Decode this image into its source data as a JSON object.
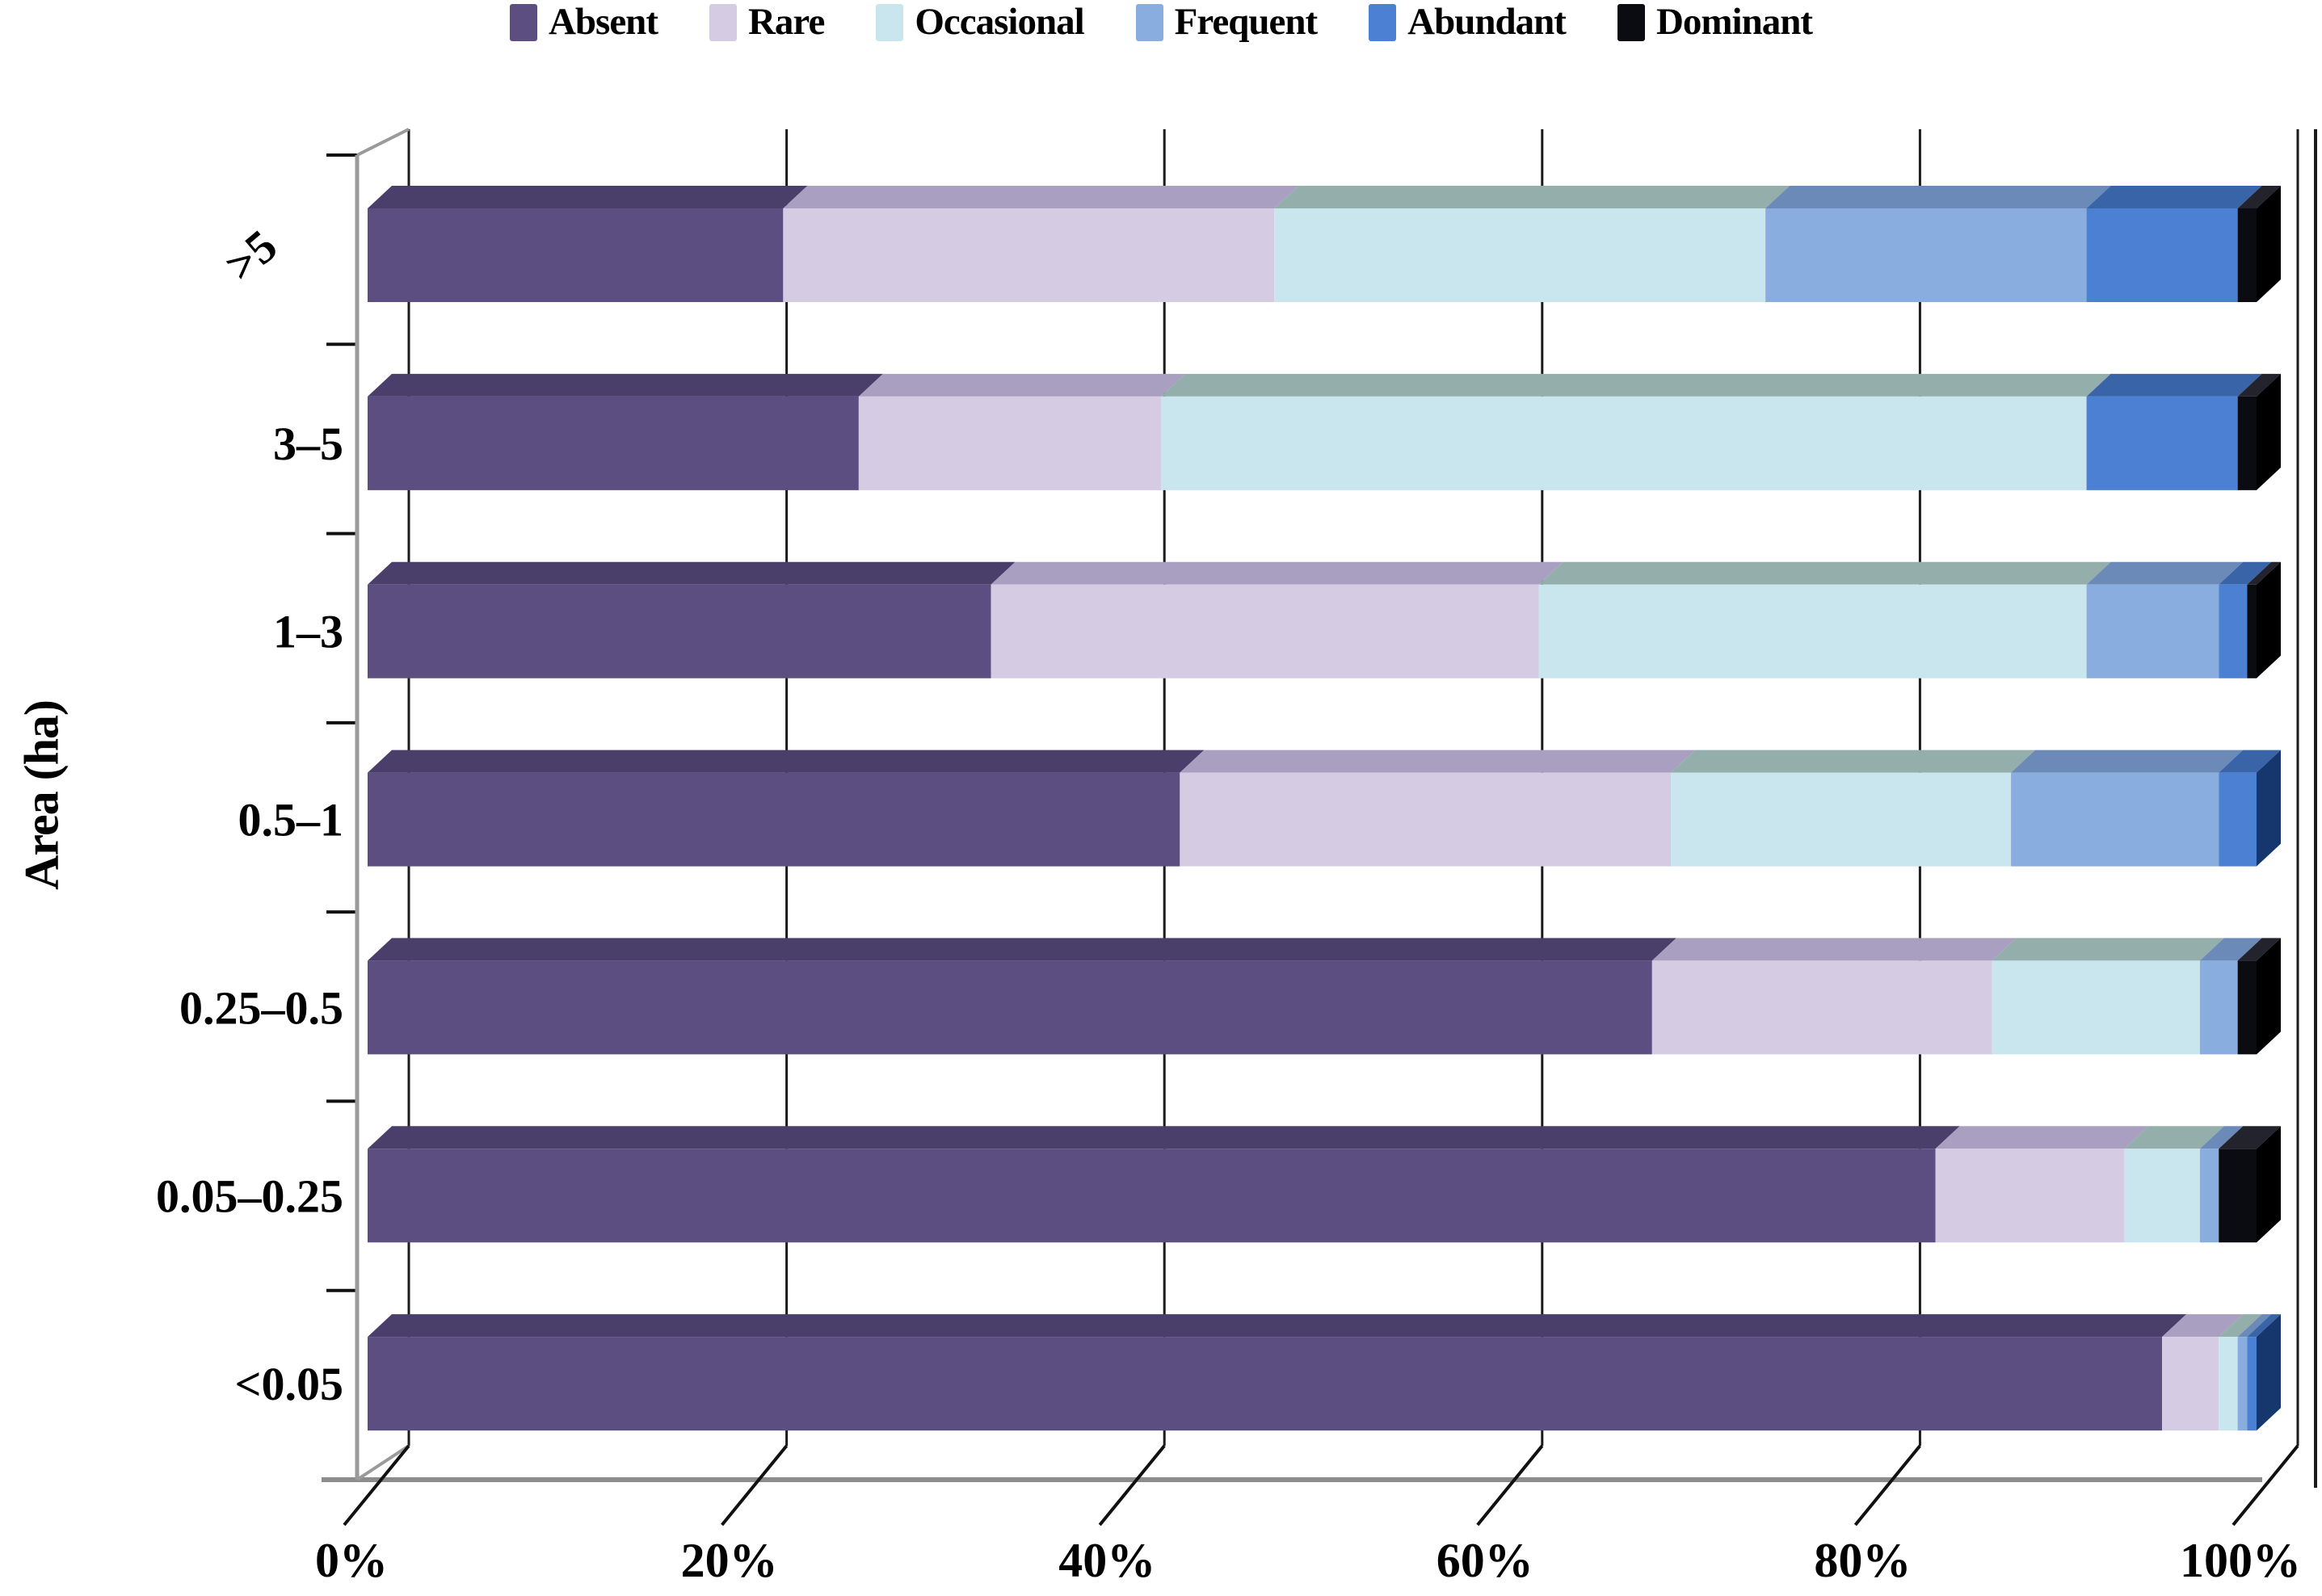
{
  "figure": {
    "background": "#ffffff"
  },
  "legend": {
    "items": [
      {
        "label": "Absent",
        "color": "#5d4e81"
      },
      {
        "label": "Rare",
        "color": "#d5cce3"
      },
      {
        "label": "Occasional",
        "color": "#c9e6ef"
      },
      {
        "label": "Frequent",
        "color": "#8aade0"
      },
      {
        "label": "Abundant",
        "color": "#4c80d2"
      },
      {
        "label": "Dominant",
        "color": "#0b0b12"
      }
    ]
  },
  "chart_data": {
    "type": "bar",
    "orientation": "horizontal",
    "stacked": true,
    "units": "percent",
    "title": "",
    "y_axis_title": "Area (ha)",
    "categories": [
      ">5",
      "3–5",
      "1–3",
      "0.5–1",
      "0.25–0.5",
      "0.05–0.25",
      "<0.05"
    ],
    "series": [
      {
        "name": "Absent",
        "color": "#5d4e81",
        "top_color": "#4a3e6a",
        "side_color": "#362d52",
        "values": [
          22,
          26,
          33,
          43,
          68,
          83,
          95
        ]
      },
      {
        "name": "Rare",
        "color": "#d5cce3",
        "top_color": "#a9a0c1",
        "side_color": "#8d84a8",
        "values": [
          26,
          16,
          29,
          26,
          18,
          10,
          3
        ]
      },
      {
        "name": "Occasional",
        "color": "#c9e6ef",
        "top_color": "#93aeab",
        "side_color": "#7e9daa",
        "values": [
          26,
          49,
          29,
          18,
          11,
          4,
          1
        ]
      },
      {
        "name": "Frequent",
        "color": "#8aade0",
        "top_color": "#6c8ab8",
        "side_color": "#4f6da0",
        "values": [
          17,
          0,
          7,
          11,
          2,
          1,
          0.5
        ]
      },
      {
        "name": "Abundant",
        "color": "#4c80d2",
        "top_color": "#3a64a8",
        "side_color": "#16376e",
        "values": [
          8,
          8,
          1.5,
          2,
          0,
          0,
          0.5
        ]
      },
      {
        "name": "Dominant",
        "color": "#0b0b12",
        "top_color": "#23232e",
        "side_color": "#000000",
        "values": [
          1,
          1,
          0.5,
          0,
          1,
          2,
          0
        ]
      }
    ],
    "x_axis": {
      "min": 0,
      "max": 100,
      "tick_step": 20,
      "tick_labels": [
        "0%",
        "20%",
        "40%",
        "60%",
        "80%",
        "100%"
      ],
      "grid": true
    }
  }
}
